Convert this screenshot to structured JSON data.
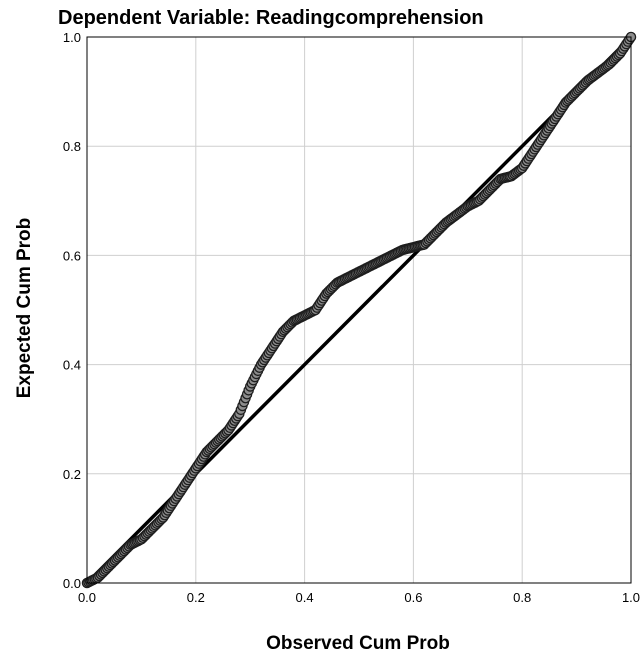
{
  "chart_data": {
    "type": "scatter",
    "title": "Dependent Variable: Readingcomprehension",
    "xlabel": "Observed Cum Prob",
    "ylabel": "Expected Cum Prob",
    "xlim": [
      0,
      1
    ],
    "ylim": [
      0,
      1
    ],
    "x_ticks": [
      "0.0",
      "0.2",
      "0.4",
      "0.6",
      "0.8",
      "1.0"
    ],
    "y_ticks": [
      "0.0",
      "0.2",
      "0.4",
      "0.6",
      "0.8",
      "1.0"
    ],
    "grid": true,
    "reference_line": {
      "from": [
        0,
        0
      ],
      "to": [
        1,
        1
      ]
    },
    "curve_points": [
      [
        0.0,
        0.0
      ],
      [
        0.02,
        0.01
      ],
      [
        0.04,
        0.03
      ],
      [
        0.06,
        0.05
      ],
      [
        0.08,
        0.07
      ],
      [
        0.1,
        0.08
      ],
      [
        0.12,
        0.1
      ],
      [
        0.14,
        0.12
      ],
      [
        0.16,
        0.15
      ],
      [
        0.18,
        0.18
      ],
      [
        0.2,
        0.21
      ],
      [
        0.22,
        0.24
      ],
      [
        0.24,
        0.26
      ],
      [
        0.26,
        0.28
      ],
      [
        0.28,
        0.31
      ],
      [
        0.3,
        0.36
      ],
      [
        0.32,
        0.4
      ],
      [
        0.34,
        0.43
      ],
      [
        0.36,
        0.46
      ],
      [
        0.38,
        0.48
      ],
      [
        0.4,
        0.49
      ],
      [
        0.42,
        0.5
      ],
      [
        0.44,
        0.53
      ],
      [
        0.46,
        0.55
      ],
      [
        0.48,
        0.56
      ],
      [
        0.5,
        0.57
      ],
      [
        0.52,
        0.58
      ],
      [
        0.54,
        0.59
      ],
      [
        0.56,
        0.6
      ],
      [
        0.58,
        0.61
      ],
      [
        0.6,
        0.615
      ],
      [
        0.62,
        0.62
      ],
      [
        0.64,
        0.64
      ],
      [
        0.66,
        0.66
      ],
      [
        0.68,
        0.675
      ],
      [
        0.7,
        0.69
      ],
      [
        0.72,
        0.7
      ],
      [
        0.74,
        0.72
      ],
      [
        0.76,
        0.74
      ],
      [
        0.78,
        0.745
      ],
      [
        0.8,
        0.76
      ],
      [
        0.82,
        0.79
      ],
      [
        0.84,
        0.82
      ],
      [
        0.86,
        0.85
      ],
      [
        0.88,
        0.88
      ],
      [
        0.9,
        0.9
      ],
      [
        0.92,
        0.92
      ],
      [
        0.94,
        0.935
      ],
      [
        0.96,
        0.95
      ],
      [
        0.98,
        0.97
      ],
      [
        1.0,
        1.0
      ]
    ],
    "colors": {
      "marker_fill": "#8c8c8c",
      "marker_stroke": "#1e1e1e",
      "line": "#000000",
      "grid": "#cfcfcf"
    }
  }
}
